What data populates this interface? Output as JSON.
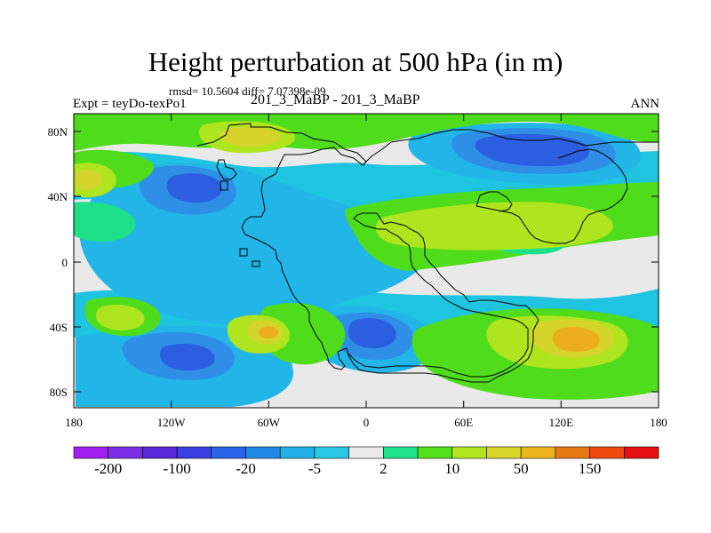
{
  "figure": {
    "title": "Height perturbation at 500 hPa (in m)",
    "stats": "rmsd= 10.5604 diff= 7.07398e-09",
    "experiment": "Expt = teyDo-texPo1",
    "comparison": "201_3_MaBP - 201_3_MaBP",
    "season": "ANN"
  },
  "axes": {
    "lat_ticks": [
      "80N",
      "40N",
      "0",
      "40S",
      "80S"
    ],
    "lon_ticks": [
      "180",
      "120W",
      "60W",
      "0",
      "60E",
      "120E",
      "180"
    ]
  },
  "colorbar": {
    "colors": [
      "#a020f0",
      "#7c2de6",
      "#5a28d8",
      "#3b3ee0",
      "#2a63e8",
      "#1f8ae6",
      "#1fb1e6",
      "#28c8e6",
      "#ebebeb",
      "#1fe28e",
      "#52e01b",
      "#b0e620",
      "#d8d52a",
      "#ecb51e",
      "#e57a14",
      "#ee4a10",
      "#e61010"
    ],
    "labels": [
      "-200",
      "-100",
      "-20",
      "-5",
      "2",
      "10",
      "50",
      "150"
    ]
  },
  "map_colors": {
    "ocean_bg": "#e9e9e9",
    "light_blue": "#22b6e8",
    "mid_blue": "#2f8fe6",
    "dark_blue": "#2b5fe0",
    "cyan": "#1ec4e0",
    "teal": "#1de088",
    "green": "#4fdd1b",
    "yellow_green": "#aee51f",
    "yellow": "#d4d42b",
    "orange": "#ecae1c",
    "coast": "#000000"
  }
}
